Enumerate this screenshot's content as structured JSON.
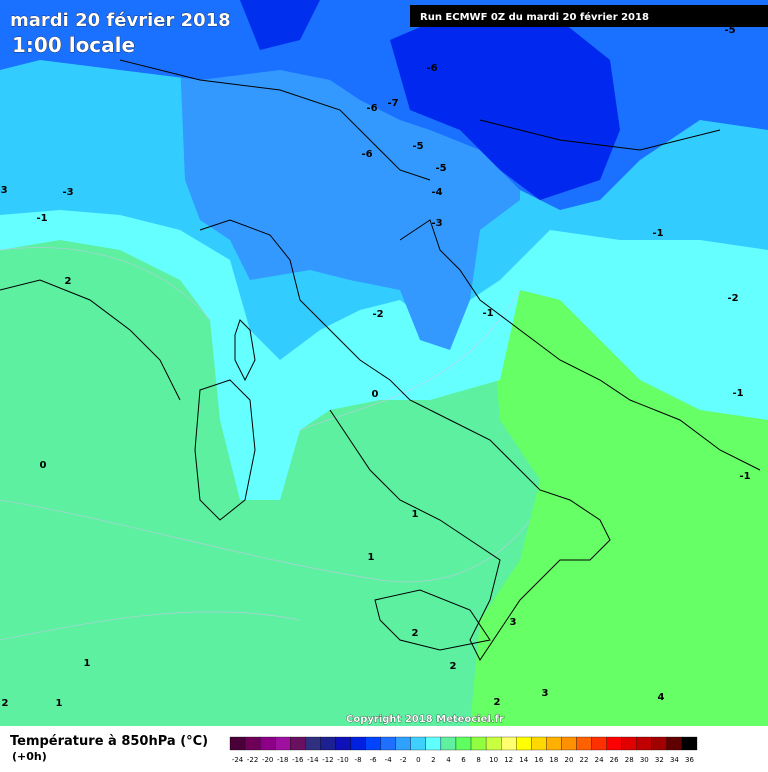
{
  "header": {
    "date": "mardi 20 février 2018",
    "time": "1:00 locale",
    "run": "Run ECMWF 0Z du mardi 20 février 2018"
  },
  "copyright": "Copyright 2018 Meteociel.fr",
  "legend": {
    "title": "Température à 850hPa (°C)",
    "lead": "(+0h)",
    "ticks": [
      "-24",
      "-22",
      "-20",
      "-18",
      "-16",
      "-14",
      "-12",
      "-10",
      "-8",
      "-6",
      "-4",
      "-2",
      "0",
      "2",
      "4",
      "6",
      "8",
      "10",
      "12",
      "14",
      "16",
      "18",
      "20",
      "22",
      "24",
      "26",
      "28",
      "30",
      "32",
      "34",
      "36"
    ],
    "colors": [
      "#4a0038",
      "#6e0058",
      "#8c0088",
      "#a010a0",
      "#6a1060",
      "#303080",
      "#1c2090",
      "#1010b8",
      "#0020e0",
      "#0044ff",
      "#2070ff",
      "#30a0ff",
      "#40d0ff",
      "#60ffff",
      "#60f0a0",
      "#60ff60",
      "#90ff40",
      "#c8ff40",
      "#ffff70",
      "#ffff00",
      "#ffd800",
      "#ffb000",
      "#ff9000",
      "#ff6000",
      "#ff3000",
      "#ff0000",
      "#e00000",
      "#c00000",
      "#a00000",
      "#600000",
      "#000000"
    ]
  },
  "contours": [
    "-5",
    "-6",
    "-7",
    "-6",
    "-6",
    "-5",
    "-5",
    "-4",
    "-3",
    "-3",
    "-1",
    "-3",
    "2",
    "-1",
    "-2",
    "-1",
    "-2",
    "0",
    "-1",
    "0",
    "-1",
    "1",
    "1",
    "3",
    "2",
    "2",
    "1",
    "3",
    "4",
    "2",
    "2",
    "1"
  ]
}
